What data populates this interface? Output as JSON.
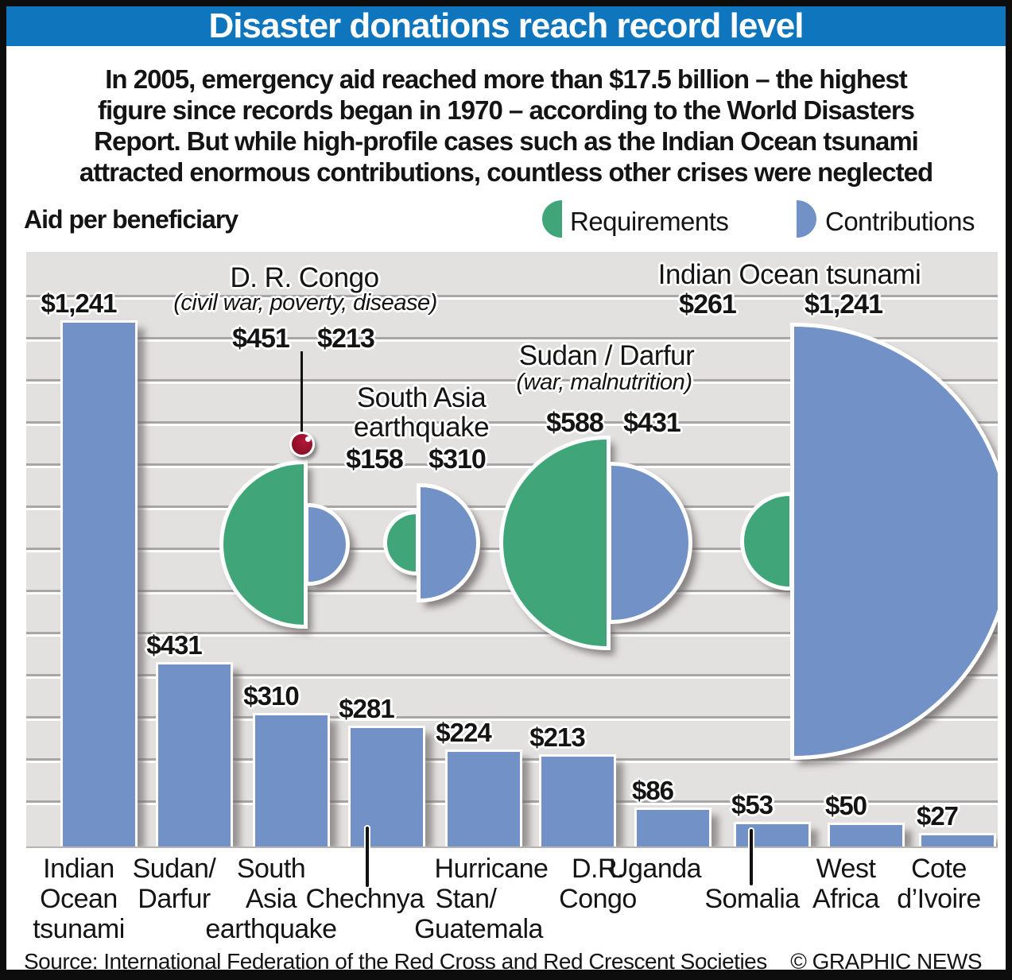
{
  "title": "Disaster donations reach record level",
  "intro": [
    "In 2005, emergency aid reached more than $17.5 billion – the highest",
    "figure since records began in 1970 – according to the World Disasters",
    "Report. But while high-profile cases such as the Indian Ocean tsunami",
    "attracted enormous contributions, countless other crises were neglected"
  ],
  "legend": {
    "title": "Aid per beneficiary",
    "requirements": "Requirements",
    "contributions": "Contributions"
  },
  "chart_data": {
    "type": "bar",
    "title": "Aid per beneficiary",
    "grid": "horizontal",
    "legend_position": "top",
    "series_note": "Bar chart shows contributions per beneficiary in US$; half-circle pairs compare requirements (green, left) vs contributions (blue, right)",
    "bars": {
      "categories": [
        "Indian Ocean tsunami",
        "Sudan/Darfur",
        "South Asia earthquake",
        "Chechnya",
        "Hurricane Stan/Guatemala",
        "D.R. Congo",
        "Uganda",
        "Somalia",
        "West Africa",
        "Cote d’Ivoire"
      ],
      "values": [
        1241,
        431,
        310,
        281,
        224,
        213,
        86,
        53,
        50,
        27
      ],
      "label_lines": [
        [
          "Indian",
          "Ocean",
          "tsunami"
        ],
        [
          "Sudan/",
          "Darfur"
        ],
        [
          "South",
          "Asia",
          "earthquake"
        ],
        [
          "Chechnya"
        ],
        [
          "Hurricane",
          "Stan/",
          "Guatemala"
        ],
        [
          "D.R.",
          "Congo"
        ],
        [
          "Uganda"
        ],
        [
          "Somalia"
        ],
        [
          "West",
          "Africa"
        ],
        [
          "Cote",
          "d’Ivoire"
        ]
      ]
    },
    "comparisons": [
      {
        "name_lines": [
          "D. R. Congo"
        ],
        "note": "(civil war, poverty, disease)",
        "requirements": 451,
        "contributions": 213
      },
      {
        "name_lines": [
          "South Asia",
          "earthquake"
        ],
        "note": "",
        "requirements": 158,
        "contributions": 310
      },
      {
        "name_lines": [
          "Sudan / Darfur"
        ],
        "note": "(war, malnutrition)",
        "requirements": 588,
        "contributions": 431
      },
      {
        "name_lines": [
          "Indian Ocean tsunami"
        ],
        "note": "",
        "requirements": 261,
        "contributions": 1241
      }
    ]
  },
  "source": "Source: International Federation of the Red Cross and Red Crescent Societies",
  "credit": "© GRAPHIC NEWS",
  "colors": {
    "requirements_green": "#41a57a",
    "contributions_blue": "#7191c7",
    "title_bar_blue": "#0f76bd",
    "chart_bg": "#e3e1e0",
    "marker_red": "#8e0f26"
  }
}
